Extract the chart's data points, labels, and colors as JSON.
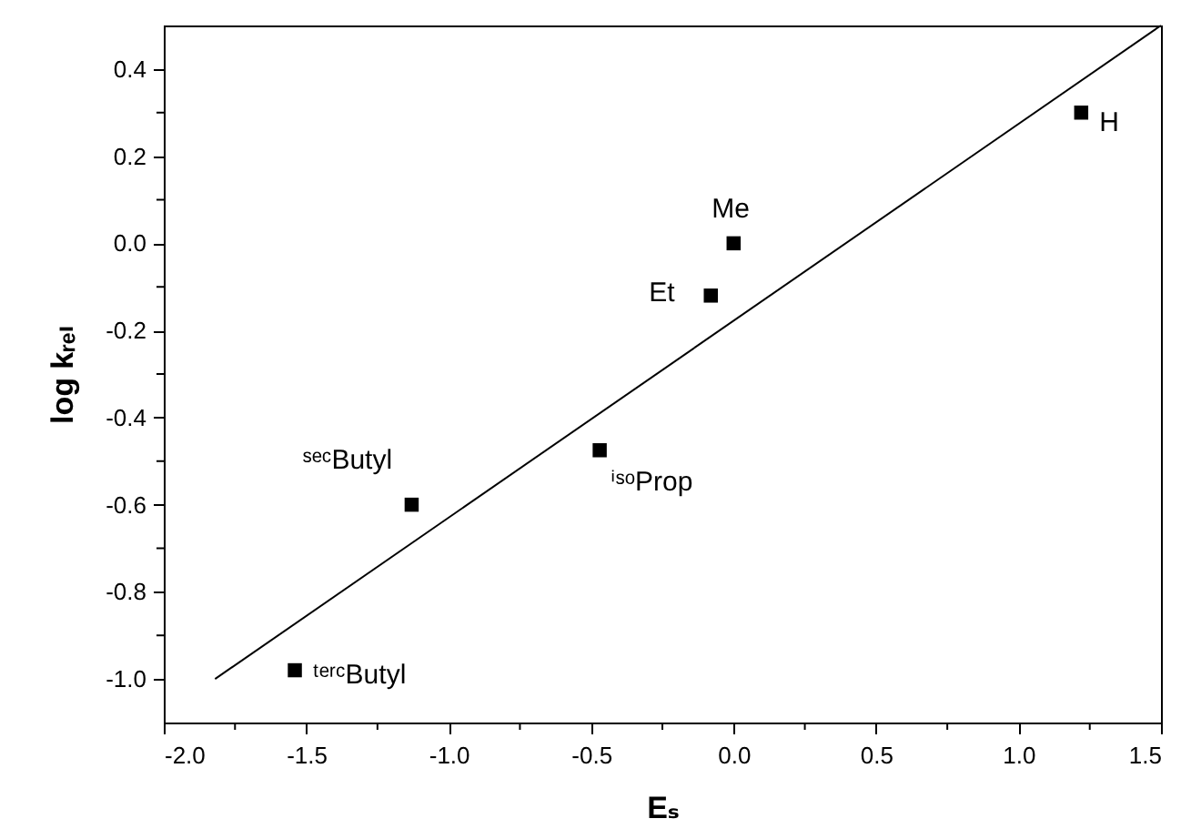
{
  "chart_data": {
    "type": "scatter",
    "xlabel": "Eₛ",
    "ylabel": "log kᵣₑₗ",
    "xlim": [
      -2.0,
      1.5
    ],
    "ylim": [
      -1.1,
      0.5
    ],
    "xticks": [
      {
        "value": -2.0,
        "label": "-2.0"
      },
      {
        "value": -1.75,
        "label": null
      },
      {
        "value": -1.5,
        "label": "-1.5"
      },
      {
        "value": -1.25,
        "label": null
      },
      {
        "value": -1.0,
        "label": "-1.0"
      },
      {
        "value": -0.75,
        "label": null
      },
      {
        "value": -0.5,
        "label": "-0.5"
      },
      {
        "value": -0.25,
        "label": null
      },
      {
        "value": 0.0,
        "label": "0.0"
      },
      {
        "value": 0.25,
        "label": null
      },
      {
        "value": 0.5,
        "label": "0.5"
      },
      {
        "value": 0.75,
        "label": null
      },
      {
        "value": 1.0,
        "label": "1.0"
      },
      {
        "value": 1.25,
        "label": null
      },
      {
        "value": 1.5,
        "label": "1.5"
      }
    ],
    "yticks": [
      {
        "value": -1.0,
        "label": "-1.0"
      },
      {
        "value": -0.9,
        "label": null
      },
      {
        "value": -0.8,
        "label": "-0.8"
      },
      {
        "value": -0.7,
        "label": null
      },
      {
        "value": -0.6,
        "label": "-0.6"
      },
      {
        "value": -0.5,
        "label": null
      },
      {
        "value": -0.4,
        "label": "-0.4"
      },
      {
        "value": -0.3,
        "label": null
      },
      {
        "value": -0.2,
        "label": "-0.2"
      },
      {
        "value": -0.1,
        "label": null
      },
      {
        "value": 0.0,
        "label": "0.0"
      },
      {
        "value": 0.1,
        "label": null
      },
      {
        "value": 0.2,
        "label": "0.2"
      },
      {
        "value": 0.3,
        "label": null
      },
      {
        "value": 0.4,
        "label": "0.4"
      }
    ],
    "grid": false,
    "marker": "square",
    "series": [
      {
        "type": "scatter",
        "color": "#000000",
        "x": [
          1.22,
          0.0,
          -0.08,
          -0.47,
          -1.13,
          -1.54
        ],
        "values": [
          0.3,
          0.0,
          -0.12,
          -0.475,
          -0.6,
          -0.98
        ]
      },
      {
        "type": "line",
        "color": "#000000",
        "line_style": "solid",
        "marker": "none",
        "x": [
          -1.82,
          1.5
        ],
        "values": [
          -1.0,
          0.5
        ]
      }
    ],
    "annotations": [
      {
        "text": "H",
        "x": 1.22,
        "y": 0.3
      },
      {
        "text": "Me",
        "x": 0.0,
        "y": 0.0
      },
      {
        "text": "Et",
        "x": -0.08,
        "y": -0.12
      },
      {
        "text": "ⁱˢᵒProp",
        "x": -0.47,
        "y": -0.475
      },
      {
        "text": "ˢᵉᶜButyl",
        "x": -1.13,
        "y": -0.6
      },
      {
        "text": "ᵗᵉʳᶜButyl",
        "x": -1.54,
        "y": -0.98
      }
    ]
  }
}
